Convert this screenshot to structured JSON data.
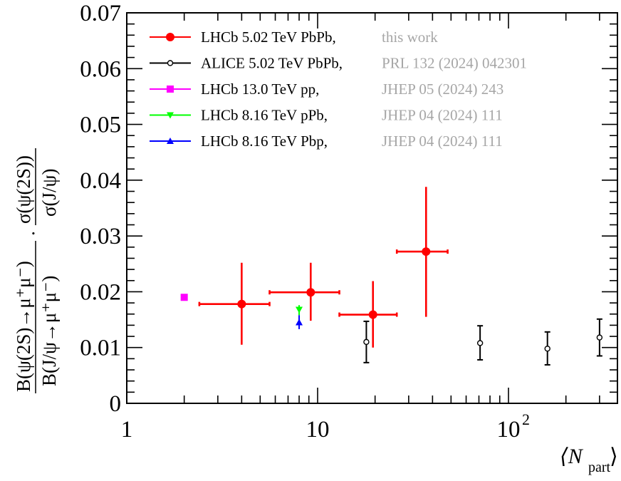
{
  "chart_data": {
    "type": "scatter",
    "x_scale": "log",
    "xlim": [
      1,
      400
    ],
    "ylim": [
      0,
      0.07
    ],
    "grid": false,
    "legend_position": "top-left",
    "xlabel": {
      "prefix": "⟨N",
      "subscript": "part",
      "suffix": "⟩"
    },
    "ylabel": {
      "part1_num": "B(ψ(2S)→μ⁺μ⁻)",
      "part1_den": "B(J/ψ→μ⁺μ⁻)",
      "dot": "·",
      "part2_num": "σ(ψ(2S))",
      "part2_den": "σ(J/ψ)"
    },
    "x_ticks": [
      {
        "value": 1,
        "label": "1"
      },
      {
        "value": 10,
        "label": "10"
      },
      {
        "value": 100,
        "label": "10",
        "sup": "2"
      }
    ],
    "y_ticks": [
      {
        "value": 0,
        "label": "0"
      },
      {
        "value": 0.01,
        "label": "0.01"
      },
      {
        "value": 0.02,
        "label": "0.02"
      },
      {
        "value": 0.03,
        "label": "0.03"
      },
      {
        "value": 0.04,
        "label": "0.04"
      },
      {
        "value": 0.05,
        "label": "0.05"
      },
      {
        "value": 0.06,
        "label": "0.06"
      },
      {
        "value": 0.07,
        "label": "0.07"
      }
    ],
    "series": [
      {
        "name": "LHCb 5.02 TeV PbPb,",
        "reference": "this work",
        "color": "#ff0000",
        "marker": "circle-filled",
        "points": [
          {
            "x": 4.0,
            "y": 0.0178,
            "xlo": 2.4,
            "xhi": 5.6,
            "ylo": 0.0105,
            "yhi": 0.0252
          },
          {
            "x": 9.2,
            "y": 0.0199,
            "xlo": 5.6,
            "xhi": 13.0,
            "ylo": 0.0148,
            "yhi": 0.0252
          },
          {
            "x": 19.5,
            "y": 0.0159,
            "xlo": 13.0,
            "xhi": 26.0,
            "ylo": 0.01,
            "yhi": 0.0219
          },
          {
            "x": 37.0,
            "y": 0.0272,
            "xlo": 26.0,
            "xhi": 48.0,
            "ylo": 0.0155,
            "yhi": 0.0388
          }
        ]
      },
      {
        "name": "ALICE 5.02 TeV PbPb,",
        "reference": "PRL 132 (2024) 042301",
        "color": "#000000",
        "marker": "circle-open",
        "points": [
          {
            "x": 18.0,
            "y": 0.011,
            "ylo": 0.0073,
            "yhi": 0.0147
          },
          {
            "x": 71.0,
            "y": 0.0108,
            "ylo": 0.0078,
            "yhi": 0.0139
          },
          {
            "x": 160.0,
            "y": 0.0098,
            "ylo": 0.0069,
            "yhi": 0.0128
          },
          {
            "x": 300.0,
            "y": 0.0118,
            "ylo": 0.0085,
            "yhi": 0.0151
          }
        ]
      },
      {
        "name": "LHCb 13.0 TeV pp,",
        "reference": "JHEP 05 (2024) 243",
        "color": "#ff00ff",
        "marker": "square-filled",
        "points": [
          {
            "x": 2.0,
            "y": 0.019
          }
        ]
      },
      {
        "name": "LHCb 8.16 TeV pPb,",
        "reference": "JHEP 04 (2024) 111",
        "color": "#00ff00",
        "marker": "triangle-down",
        "points": [
          {
            "x": 8.0,
            "y": 0.0168,
            "ylo": 0.0158,
            "yhi": 0.0176
          }
        ]
      },
      {
        "name": "LHCb 8.16 TeV Pbp,",
        "reference": "JHEP 04 (2024) 111",
        "color": "#0000ff",
        "marker": "triangle-up",
        "points": [
          {
            "x": 8.0,
            "y": 0.0145,
            "ylo": 0.0133,
            "yhi": 0.0158
          }
        ]
      }
    ]
  }
}
